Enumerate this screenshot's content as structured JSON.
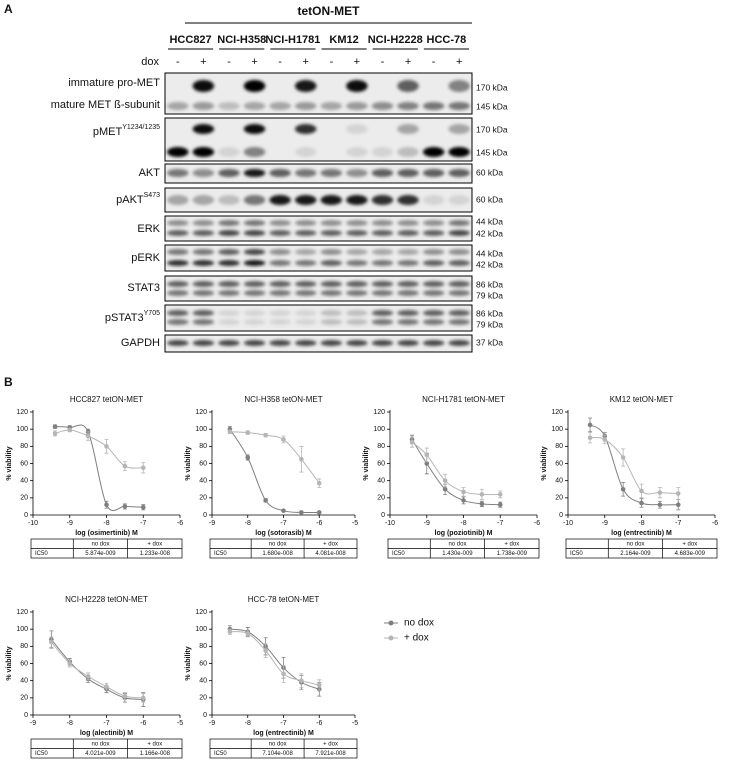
{
  "panel_a": {
    "panel_label": "A",
    "group_label": "tetON-MET",
    "cell_lines": [
      "HCC827",
      "NCI-H358",
      "NCI-H1781",
      "KM12",
      "NCI-H2228",
      "HCC-78"
    ],
    "treatment_label": "dox",
    "lane_labels": [
      "-",
      "+",
      "-",
      "+",
      "-",
      "+",
      "-",
      "+",
      "-",
      "+",
      "-",
      "+"
    ],
    "rows": [
      {
        "labels": [
          {
            "text": "immature pro-MET"
          },
          {
            "text": "mature MET ß-subunit"
          }
        ],
        "kda": [
          "170 kDa",
          "145 kDa"
        ]
      },
      {
        "labels": [
          {
            "text": "pMET",
            "superscript": "Y1234/1235"
          }
        ],
        "kda": [
          "170 kDa",
          "145 kDa"
        ]
      },
      {
        "labels": [
          {
            "text": "AKT"
          }
        ],
        "kda": [
          "60 kDa"
        ]
      },
      {
        "labels": [
          {
            "text": "pAKT",
            "superscript": "S473"
          }
        ],
        "kda": [
          "60 kDa"
        ]
      },
      {
        "labels": [
          {
            "text": "ERK"
          }
        ],
        "kda": [
          "44 kDa",
          "42 kDa"
        ]
      },
      {
        "labels": [
          {
            "text": "pERK"
          }
        ],
        "kda": [
          "44 kDa",
          "42 kDa"
        ]
      },
      {
        "labels": [
          {
            "text": "STAT3"
          }
        ],
        "kda": [
          "86 kDa",
          "79 kDa"
        ]
      },
      {
        "labels": [
          {
            "text": "pSTAT3",
            "superscript": "Y705"
          }
        ],
        "kda": [
          "86 kDa",
          "79 kDa"
        ]
      },
      {
        "labels": [
          {
            "text": "GAPDH"
          }
        ],
        "kda": [
          "37 kDa"
        ]
      }
    ]
  },
  "panel_b_label": "B",
  "chart_data": [
    {
      "type": "line",
      "title": "HCC827 tetON-MET",
      "x_label": "log (osimertinib) M",
      "y_label": "% viability",
      "x": [
        -9.4,
        -9,
        -8.5,
        -8,
        -7.5,
        -7
      ],
      "xlim": [
        -10,
        -6
      ],
      "xticks": [
        -10,
        -9,
        -8,
        -7,
        -6
      ],
      "ylim": [
        0,
        120
      ],
      "yticks": [
        0,
        20,
        40,
        60,
        80,
        100,
        120
      ],
      "series": [
        {
          "name": "no dox",
          "color": "#7f7f7f",
          "values": [
            103,
            102,
            97,
            12,
            10,
            9
          ],
          "errors": [
            2,
            2,
            3,
            4,
            3,
            3
          ]
        },
        {
          "name": "+ dox",
          "color": "#b5b5b5",
          "values": [
            95,
            99,
            92,
            80,
            57,
            55
          ],
          "errors": [
            3,
            2,
            5,
            8,
            5,
            6
          ]
        }
      ],
      "table": {
        "columns": [
          "no dox",
          "+ dox"
        ],
        "rows": [
          [
            "IC50",
            "5.874e-009",
            "1.233e-008"
          ]
        ]
      }
    },
    {
      "type": "line",
      "title": "NCI-H358 tetON-MET",
      "x_label": "log (sotorasib) M",
      "y_label": "% viability",
      "x": [
        -8.5,
        -8,
        -7.5,
        -7,
        -6.5,
        -6
      ],
      "xlim": [
        -9,
        -5
      ],
      "xticks": [
        -9,
        -8,
        -7,
        -6,
        -5
      ],
      "ylim": [
        0,
        120
      ],
      "yticks": [
        0,
        20,
        40,
        60,
        80,
        100,
        120
      ],
      "series": [
        {
          "name": "no dox",
          "color": "#7f7f7f",
          "values": [
            100,
            67,
            17,
            5,
            3,
            3
          ],
          "errors": [
            3,
            3,
            2,
            1,
            1,
            1
          ]
        },
        {
          "name": "+ dox",
          "color": "#b5b5b5",
          "values": [
            97,
            96,
            93,
            88,
            65,
            37
          ],
          "errors": [
            2,
            2,
            2,
            4,
            15,
            5
          ]
        }
      ],
      "table": {
        "columns": [
          "no dox",
          "+ dox"
        ],
        "rows": [
          [
            "IC50",
            "1.680e-008",
            "4.081e-008"
          ]
        ]
      }
    },
    {
      "type": "line",
      "title": "NCI-H1781 tetON-MET",
      "x_label": "log (poziotinib) M",
      "y_label": "% viability",
      "x": [
        -9.4,
        -9,
        -8.5,
        -8,
        -7.5,
        -7
      ],
      "xlim": [
        -10,
        -6
      ],
      "xticks": [
        -10,
        -9,
        -8,
        -7,
        -6
      ],
      "ylim": [
        0,
        120
      ],
      "yticks": [
        0,
        20,
        40,
        60,
        80,
        100,
        120
      ],
      "series": [
        {
          "name": "no dox",
          "color": "#7f7f7f",
          "values": [
            88,
            60,
            30,
            17,
            13,
            12
          ],
          "errors": [
            5,
            12,
            6,
            4,
            3,
            3
          ]
        },
        {
          "name": "+ dox",
          "color": "#b5b5b5",
          "values": [
            85,
            70,
            40,
            27,
            24,
            24
          ],
          "errors": [
            6,
            8,
            7,
            5,
            6,
            4
          ]
        }
      ],
      "table": {
        "columns": [
          "no dox",
          "+ dox"
        ],
        "rows": [
          [
            "IC50",
            "1.430e-009",
            "1.738e-009"
          ]
        ]
      }
    },
    {
      "type": "line",
      "title": "KM12 tetON-MET",
      "x_label": "log (entrectinib) M",
      "y_label": "% viability",
      "x": [
        -9.4,
        -9,
        -8.5,
        -8,
        -7.5,
        -7
      ],
      "xlim": [
        -10,
        -6
      ],
      "xticks": [
        -10,
        -9,
        -8,
        -7,
        -6
      ],
      "ylim": [
        0,
        120
      ],
      "yticks": [
        0,
        20,
        40,
        60,
        80,
        100,
        120
      ],
      "series": [
        {
          "name": "no dox",
          "color": "#7f7f7f",
          "values": [
            105,
            92,
            30,
            14,
            12,
            12
          ],
          "errors": [
            8,
            4,
            8,
            5,
            4,
            6
          ]
        },
        {
          "name": "+ dox",
          "color": "#b5b5b5",
          "values": [
            90,
            88,
            67,
            28,
            26,
            25
          ],
          "errors": [
            6,
            5,
            10,
            8,
            6,
            7
          ]
        }
      ],
      "table": {
        "columns": [
          "no dox",
          "+ dox"
        ],
        "rows": [
          [
            "IC50",
            "2.164e-009",
            "4.683e-009"
          ]
        ]
      }
    },
    {
      "type": "line",
      "title": "NCI-H2228 tetON-MET",
      "x_label": "log (alectinib) M",
      "y_label": "% viability",
      "x": [
        -8.5,
        -8,
        -7.5,
        -7,
        -6.5,
        -6
      ],
      "xlim": [
        -9,
        -5
      ],
      "xticks": [
        -9,
        -8,
        -7,
        -6,
        -5
      ],
      "ylim": [
        0,
        120
      ],
      "yticks": [
        0,
        20,
        40,
        60,
        80,
        100,
        120
      ],
      "series": [
        {
          "name": "no dox",
          "color": "#7f7f7f",
          "values": [
            88,
            62,
            42,
            30,
            20,
            18
          ],
          "errors": [
            10,
            4,
            4,
            4,
            5,
            8
          ]
        },
        {
          "name": "+ dox",
          "color": "#b5b5b5",
          "values": [
            85,
            60,
            45,
            33,
            22,
            20
          ],
          "errors": [
            6,
            4,
            4,
            4,
            4,
            5
          ]
        }
      ],
      "table": {
        "columns": [
          "no dox",
          "+ dox"
        ],
        "rows": [
          [
            "IC50",
            "4.021e-009",
            "1.166e-008"
          ]
        ]
      }
    },
    {
      "type": "line",
      "title": "HCC-78 tetON-MET",
      "x_label": "log (entrectinib) M",
      "y_label": "% viability",
      "x": [
        -8.5,
        -8,
        -7.5,
        -7,
        -6.5,
        -6
      ],
      "xlim": [
        -9,
        -5
      ],
      "xticks": [
        -9,
        -8,
        -7,
        -6,
        -5
      ],
      "ylim": [
        0,
        120
      ],
      "yticks": [
        0,
        20,
        40,
        60,
        80,
        100,
        120
      ],
      "series": [
        {
          "name": "no dox",
          "color": "#7f7f7f",
          "values": [
            100,
            97,
            80,
            55,
            38,
            30
          ],
          "errors": [
            4,
            5,
            10,
            12,
            8,
            8
          ]
        },
        {
          "name": "+ dox",
          "color": "#b5b5b5",
          "values": [
            97,
            95,
            75,
            48,
            40,
            35
          ],
          "errors": [
            3,
            4,
            8,
            10,
            8,
            6
          ]
        }
      ],
      "table": {
        "columns": [
          "no dox",
          "+ dox"
        ],
        "rows": [
          [
            "IC50",
            "7.104e-008",
            "7.921e-008"
          ]
        ]
      }
    }
  ]
}
